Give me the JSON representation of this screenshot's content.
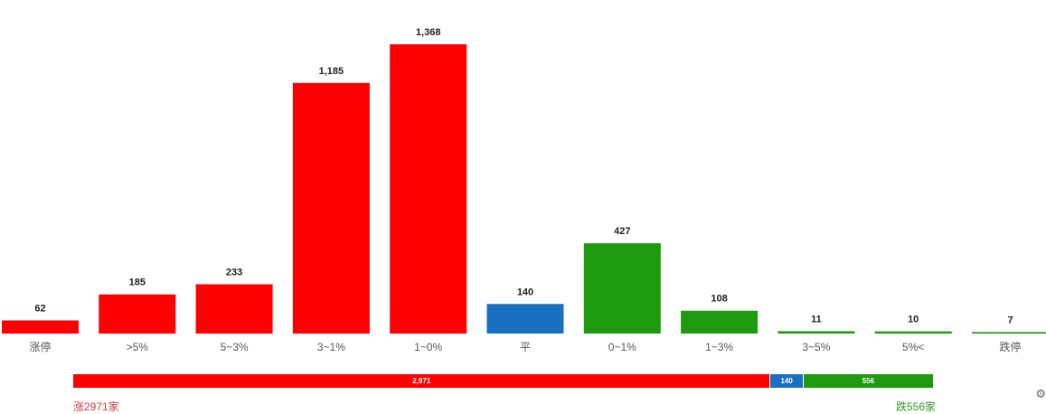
{
  "colors": {
    "up": "#ff0000",
    "flat": "#1a70c0",
    "down": "#1d9a0d",
    "up_text": "#d9383a",
    "down_text": "#2e9a1e"
  },
  "chart_data": {
    "type": "bar",
    "categories": [
      "涨停",
      ">5%",
      "5~3%",
      "3~1%",
      "1~0%",
      "平",
      "0~1%",
      "1~3%",
      "3~5%",
      "5%<",
      "跌停"
    ],
    "values": [
      62,
      185,
      233,
      1185,
      1368,
      140,
      427,
      108,
      11,
      10,
      7
    ],
    "value_labels": [
      "62",
      "185",
      "233",
      "1,185",
      "1,368",
      "140",
      "427",
      "108",
      "11",
      "10",
      "7"
    ],
    "bar_colors": [
      "up",
      "up",
      "up",
      "up",
      "up",
      "flat",
      "down",
      "down",
      "down",
      "down",
      "down"
    ],
    "ylim": [
      0,
      1368
    ],
    "grid": false
  },
  "summary_bar": {
    "segments": [
      {
        "key": "rise",
        "value": 2971,
        "label": "2,971",
        "color": "up"
      },
      {
        "key": "flat",
        "value": 140,
        "label": "140",
        "color": "flat"
      },
      {
        "key": "fall",
        "value": 556,
        "label": "556",
        "color": "down"
      }
    ]
  },
  "footer": {
    "rise_text": "涨2971家",
    "fall_text": "跌556家"
  },
  "icons": {
    "corner": "settings-icon"
  }
}
